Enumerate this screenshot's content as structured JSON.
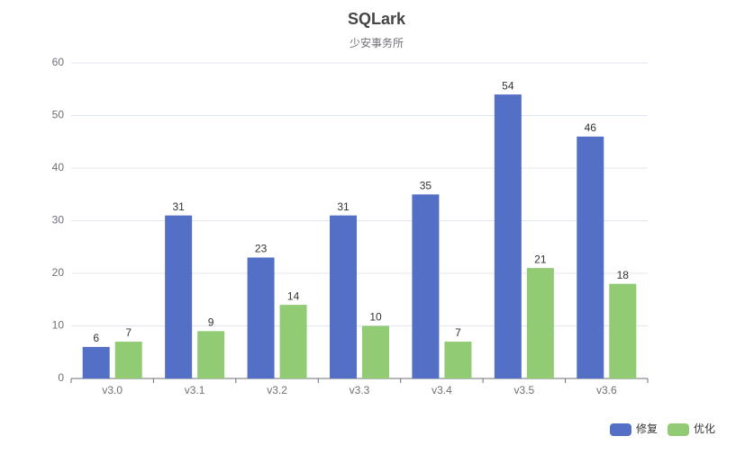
{
  "chart_data": {
    "type": "bar",
    "title": "SQLark",
    "subtitle": "少安事务所",
    "categories": [
      "v3.0",
      "v3.1",
      "v3.2",
      "v3.3",
      "v3.4",
      "v3.5",
      "v3.6"
    ],
    "series": [
      {
        "name": "修复",
        "color": "#5470c6",
        "values": [
          6,
          31,
          23,
          31,
          35,
          54,
          46
        ]
      },
      {
        "name": "优化",
        "color": "#91cc75",
        "values": [
          7,
          9,
          14,
          10,
          7,
          21,
          18
        ]
      }
    ],
    "ylim": [
      0,
      60
    ],
    "yticks": [
      0,
      10,
      20,
      30,
      40,
      50,
      60
    ],
    "grid": true,
    "legend": "bottom-right"
  }
}
